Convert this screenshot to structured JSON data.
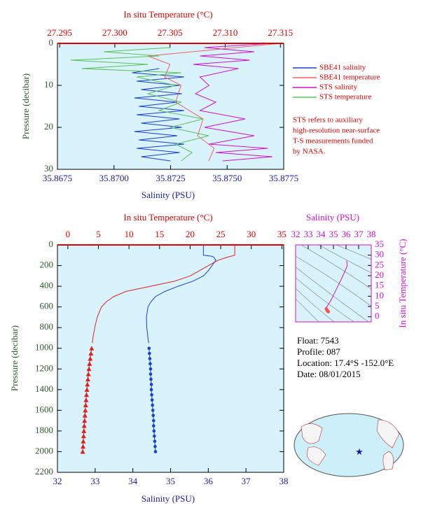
{
  "chart_data": [
    {
      "type": "profile",
      "x2_label": "In situ Temperature (°C)",
      "x_label": "Salinity (PSU)",
      "y_label": "Pressure (decibar)",
      "xlim": [
        35.8675,
        35.8775
      ],
      "xticks": [
        35.8675,
        {
          "value": 35.87,
          "label": "35.8700"
        },
        35.8725,
        {
          "value": 35.875,
          "label": "35.8750"
        },
        35.8775
      ],
      "x2lim": [
        27.2948,
        27.3153
      ],
      "x2ticks": [
        27.295,
        {
          "value": 27.3,
          "label": "27.300"
        },
        27.305,
        {
          "value": 27.31,
          "label": "27.310"
        },
        27.315
      ],
      "ylim": [
        0,
        30
      ],
      "yticks": [
        0,
        10,
        20,
        30
      ],
      "y_inverted": true,
      "legend": "outside-right",
      "series": [
        {
          "name": "SBE41 salinity",
          "color": "#1a3fd6",
          "pressure": [
            6,
            7,
            8,
            9,
            10,
            11,
            12,
            13,
            14,
            15,
            16,
            17,
            18,
            19,
            20,
            21,
            22,
            23,
            24,
            25,
            26,
            27,
            28
          ],
          "values": [
            35.872,
            35.8708,
            35.8731,
            35.871,
            35.8729,
            35.8712,
            35.873,
            35.8709,
            35.8728,
            35.8711,
            35.8731,
            35.871,
            35.8729,
            35.8712,
            35.873,
            35.8709,
            35.8728,
            35.8711,
            35.8731,
            35.871,
            35.8729,
            35.8712,
            35.8725
          ]
        },
        {
          "name": "SBE41 temperature",
          "color": "#f26060",
          "axis": "x2",
          "pressure": [
            0,
            0,
            3,
            5,
            8,
            10,
            14,
            18,
            22,
            25,
            28
          ],
          "values": [
            27.295,
            27.315,
            27.303,
            27.305,
            27.3045,
            27.306,
            27.3055,
            27.308,
            27.3075,
            27.309,
            27.3085
          ]
        },
        {
          "name": "STS salinity",
          "color": "#d010d0",
          "pressure": [
            0,
            1,
            2,
            3,
            4,
            5,
            6,
            8,
            10,
            12,
            14,
            16,
            18,
            20,
            22,
            24,
            25,
            26,
            27,
            28
          ],
          "values": [
            35.877,
            35.874,
            35.8762,
            35.8738,
            35.876,
            35.8735,
            35.8755,
            35.8738,
            35.8742,
            35.8736,
            35.8745,
            35.8738,
            35.8758,
            35.874,
            35.8762,
            35.8742,
            35.8768,
            35.8745,
            35.877,
            35.8748
          ]
        },
        {
          "name": "STS temperature",
          "color": "#5cc05c",
          "axis": "x2",
          "pressure": [
            1,
            2,
            3,
            4,
            5,
            6,
            7,
            8,
            10,
            12,
            14,
            16,
            18,
            20,
            22,
            24,
            26,
            28
          ],
          "values": [
            27.305,
            27.299,
            27.304,
            27.296,
            27.303,
            27.297,
            27.306,
            27.302,
            27.3055,
            27.303,
            27.306,
            27.304,
            27.308,
            27.305,
            27.3085,
            27.3055,
            27.307,
            27.306
          ]
        }
      ],
      "note": [
        "STS refers to auxiliary",
        "high-resolution near-surface",
        "T-S measurements funded",
        "by NASA."
      ]
    },
    {
      "type": "profile",
      "x2_label": "In situ Temperature (°C)",
      "x_label": "Salinity (PSU)",
      "y_label": "Pressure (decibar)",
      "xlim": [
        32,
        38
      ],
      "xticks": [
        32,
        33,
        34,
        35,
        36,
        37,
        38
      ],
      "x2lim": [
        -1.7,
        35.3
      ],
      "x2ticks": [
        0,
        5,
        10,
        15,
        20,
        25,
        30,
        35
      ],
      "ylim": [
        0,
        2200
      ],
      "yticks": [
        0,
        200,
        400,
        600,
        800,
        1000,
        1200,
        1400,
        1600,
        1800,
        2000,
        2200
      ],
      "y_inverted": true,
      "series": [
        {
          "color": "#1a3fd6",
          "pressure": [
            0,
            100,
            110,
            120,
            150,
            200,
            250,
            300,
            350,
            400,
            450,
            500,
            550,
            600,
            700,
            800,
            900,
            950
          ],
          "values": [
            35.87,
            35.87,
            36.1,
            36.15,
            36.2,
            36.1,
            36.0,
            35.87,
            35.6,
            35.2,
            34.85,
            34.6,
            34.48,
            34.4,
            34.36,
            34.37,
            34.4,
            34.42
          ]
        },
        {
          "color": "#1a3fd6",
          "marker": "circle",
          "pressure": [
            1000,
            1050,
            1100,
            1150,
            1200,
            1250,
            1300,
            1350,
            1400,
            1450,
            1500,
            1550,
            1600,
            1650,
            1700,
            1750,
            1800,
            1850,
            1900,
            1950,
            2000
          ],
          "values": [
            34.43,
            34.44,
            34.45,
            34.46,
            34.47,
            34.47,
            34.48,
            34.49,
            34.49,
            34.5,
            34.51,
            34.52,
            34.53,
            34.54,
            34.55,
            34.55,
            34.56,
            34.57,
            34.58,
            34.59,
            34.6
          ]
        },
        {
          "color": "#e02020",
          "axis": "x2",
          "pressure": [
            0,
            100,
            120,
            150,
            200,
            250,
            300,
            350,
            400,
            450,
            500,
            550,
            600,
            700,
            800,
            900,
            950
          ],
          "values": [
            27.3,
            27.3,
            26.0,
            24.5,
            23.0,
            21.5,
            20.0,
            17.5,
            13.5,
            9.5,
            7.5,
            6.3,
            5.5,
            4.8,
            4.4,
            4.1,
            4.0
          ]
        },
        {
          "color": "#e02020",
          "axis": "x2",
          "marker": "triangle",
          "pressure": [
            1000,
            1050,
            1100,
            1150,
            1200,
            1250,
            1300,
            1350,
            1400,
            1450,
            1500,
            1550,
            1600,
            1650,
            1700,
            1750,
            1800,
            1850,
            1900,
            1950,
            2000
          ],
          "values": [
            3.9,
            3.78,
            3.66,
            3.55,
            3.45,
            3.36,
            3.28,
            3.2,
            3.12,
            3.05,
            2.98,
            2.92,
            2.86,
            2.8,
            2.74,
            2.68,
            2.63,
            2.58,
            2.53,
            2.48,
            2.43
          ]
        }
      ]
    },
    {
      "type": "line",
      "x2_label": "Salinity (PSU)",
      "y2_label": "In situ Temperature (°C)",
      "x2lim": [
        32,
        38
      ],
      "x2ticks": [
        32,
        33,
        34,
        35,
        36,
        37,
        38
      ],
      "y2lim": [
        -2.5,
        35
      ],
      "y2ticks": [
        0,
        5,
        10,
        15,
        20,
        25,
        30,
        35
      ],
      "series": [
        {
          "color": "#d010d0",
          "x": [
            36.05,
            36.1,
            35.9,
            35.6,
            35.2,
            34.8,
            34.5,
            34.4
          ],
          "values": [
            27.3,
            25,
            22,
            18,
            13,
            8,
            5,
            4.3
          ]
        },
        {
          "color": "#ff5050",
          "marker": "circle",
          "x": [
            34.43,
            34.47,
            34.5,
            34.53,
            34.57,
            34.6
          ],
          "values": [
            3.9,
            3.45,
            3.05,
            2.86,
            2.63,
            2.43
          ]
        }
      ]
    }
  ],
  "info": [
    "Float:  7543",
    "Profile:  087",
    "Location:  17.4°S  -152.0°E",
    "Date:  08/01/2015"
  ]
}
